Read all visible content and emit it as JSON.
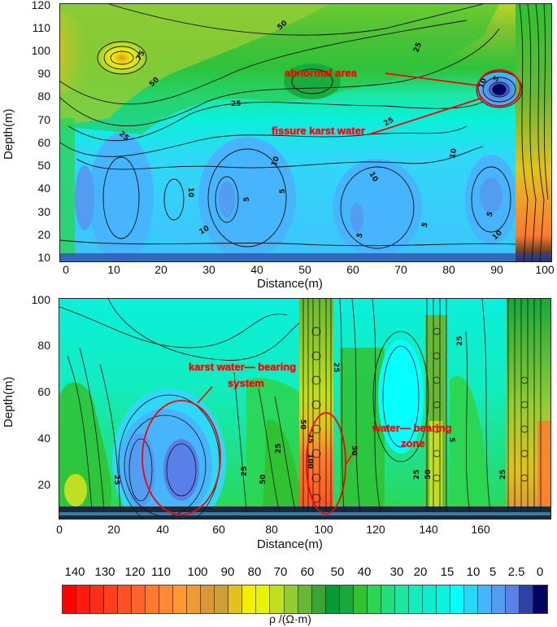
{
  "chart_data": [
    {
      "type": "heatmap",
      "subtype": "filled-contour",
      "title": "",
      "xlabel": "Distance(m)",
      "ylabel": "Depth(m)",
      "xlim": [
        0,
        103
      ],
      "ylim": [
        8,
        120
      ],
      "x_ticks": [
        0,
        10,
        20,
        30,
        40,
        50,
        60,
        70,
        80,
        90,
        100
      ],
      "y_ticks": [
        10,
        20,
        30,
        40,
        50,
        60,
        70,
        80,
        90,
        100,
        110,
        120
      ],
      "contour_labels": [
        "75",
        "50",
        "50",
        "25",
        "25",
        "25",
        "25",
        "10",
        "10",
        "10",
        "10",
        "10",
        "10",
        "5",
        "5",
        "5",
        "5",
        "5",
        "5",
        "10",
        "5"
      ],
      "annotations": [
        {
          "text": "abnormal area",
          "target": "low-resistivity anomaly near x≈92 m, depth≈83 m (circled)"
        },
        {
          "text": "fissure karst water",
          "target": "same circled anomaly"
        }
      ],
      "features": {
        "high_resistivity": [
          "x≈12 m, depth≈96 m (≈100 Ω·m)",
          "x≈0 m, depth≈110 m",
          "x≈100–103 m, depth 10–50 m"
        ],
        "low_resistivity": [
          "broad 5–10 Ω·m zone depth 10–60 m",
          "x≈92 m, depth≈83 m (<2.5 Ω·m core)"
        ]
      }
    },
    {
      "type": "heatmap",
      "subtype": "filled-contour",
      "title": "",
      "xlabel": "Distance(m)",
      "ylabel": "Depth(m)",
      "xlim": [
        0,
        172
      ],
      "ylim": [
        5,
        100
      ],
      "x_ticks": [
        0,
        20,
        40,
        60,
        80,
        100,
        120,
        140,
        160
      ],
      "y_ticks": [
        20,
        40,
        60,
        80,
        100
      ],
      "contour_labels": [
        "25",
        "25",
        "25",
        "50",
        "25",
        "50",
        "75",
        "100",
        "50",
        "25",
        "50",
        "25",
        "25",
        "5"
      ],
      "annotations": [
        {
          "text": "karst water— bearing system",
          "target": "ellipse x≈28–55 m, depth≈8–55 m"
        },
        {
          "text": "water— bearing zone",
          "target": "ellipse x≈85–100 m, depth≈8–40 m"
        }
      ],
      "features": {
        "high_resistivity_columns": [
          "x≈88–95 m (up to ~100 Ω·m)",
          "x≈128–132 m",
          "x≈158–170 m"
        ],
        "low_resistivity": [
          "x≈25–50 m depth 10–50 m (2.5–10 Ω·m)",
          "x≈110–120 m depth 40–80 m"
        ]
      }
    },
    {
      "type": "colorbar",
      "label": "ρ /(Ω·m)",
      "tick_labels": [
        "140",
        "130",
        "120",
        "110",
        "100",
        "90",
        "80",
        "70",
        "60",
        "50",
        "40",
        "30",
        "20",
        "15",
        "10",
        "5",
        "2.5",
        "0"
      ],
      "colors": [
        "#ff0000",
        "#ff1a0f",
        "#ff2d17",
        "#ff3f1c",
        "#ff5122",
        "#ff6428",
        "#ff792e",
        "#ff8a33",
        "#fd9933",
        "#ee9a38",
        "#d99835",
        "#cda033",
        "#e2c21d",
        "#f4ee00",
        "#e6f40a",
        "#c0df22",
        "#95cc35",
        "#67b836",
        "#3aa437",
        "#049a35",
        "#17a93a",
        "#2fc231",
        "#2bd653",
        "#22dd7d",
        "#1ae8a0",
        "#12ecbf",
        "#0eeecc",
        "#0af5de",
        "#05ffff",
        "#25d7f9",
        "#46b5fd",
        "#529cf1",
        "#5880e8",
        "#2d43a3",
        "#010561"
      ]
    }
  ],
  "top_panel": {
    "ylabel": "Depth(m)",
    "xlabel": "Distance(m)",
    "y_ticks": [
      "120",
      "110",
      "100",
      "90",
      "80",
      "70",
      "60",
      "50",
      "40",
      "30",
      "20",
      "10"
    ],
    "x_ticks": [
      "0",
      "10",
      "20",
      "30",
      "40",
      "50",
      "60",
      "70",
      "80",
      "90",
      "100"
    ],
    "annotations": {
      "abnormal": "abnormal area",
      "fissure": "fissure karst water"
    }
  },
  "bottom_panel": {
    "ylabel": "Depth(m)",
    "xlabel": "Distance(m)",
    "y_ticks": [
      "100",
      "80",
      "60",
      "40",
      "20"
    ],
    "x_ticks": [
      "0",
      "20",
      "40",
      "60",
      "80",
      "100",
      "120",
      "140",
      "160"
    ],
    "annotations": {
      "karst_line1": "karst water— bearing",
      "karst_line2": "system",
      "zone_line1": "water— bearing",
      "zone_line2": "zone"
    }
  },
  "colorbar": {
    "label": "ρ /(Ω·m)",
    "ticks": [
      "140",
      "130",
      "120",
      "110",
      "100",
      "90",
      "80",
      "70",
      "60",
      "50",
      "40",
      "30",
      "20",
      "15",
      "10",
      "5",
      "2.5",
      "0"
    ]
  },
  "colors": {
    "annotation": "#ff0000"
  }
}
